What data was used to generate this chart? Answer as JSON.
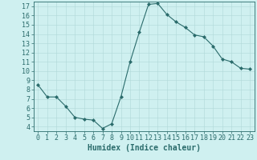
{
  "x": [
    0,
    1,
    2,
    3,
    4,
    5,
    6,
    7,
    8,
    9,
    10,
    11,
    12,
    13,
    14,
    15,
    16,
    17,
    18,
    19,
    20,
    21,
    22,
    23
  ],
  "y": [
    8.5,
    7.2,
    7.2,
    6.2,
    5.0,
    4.8,
    4.7,
    3.8,
    4.3,
    7.2,
    11.0,
    14.2,
    17.2,
    17.3,
    16.1,
    15.3,
    14.7,
    13.9,
    13.7,
    12.7,
    11.3,
    11.0,
    10.3,
    10.2
  ],
  "xlabel": "Humidex (Indice chaleur)",
  "xlim": [
    -0.5,
    23.5
  ],
  "ylim": [
    3.5,
    17.5
  ],
  "yticks": [
    4,
    5,
    6,
    7,
    8,
    9,
    10,
    11,
    12,
    13,
    14,
    15,
    16,
    17
  ],
  "xticks": [
    0,
    1,
    2,
    3,
    4,
    5,
    6,
    7,
    8,
    9,
    10,
    11,
    12,
    13,
    14,
    15,
    16,
    17,
    18,
    19,
    20,
    21,
    22,
    23
  ],
  "line_color": "#2a6b6b",
  "marker": "D",
  "marker_size": 2.0,
  "bg_color": "#cff0f0",
  "grid_color": "#afd8d8",
  "spine_color": "#2a6b6b",
  "tick_color": "#2a6b6b",
  "xlabel_fontsize": 7,
  "tick_fontsize": 6
}
